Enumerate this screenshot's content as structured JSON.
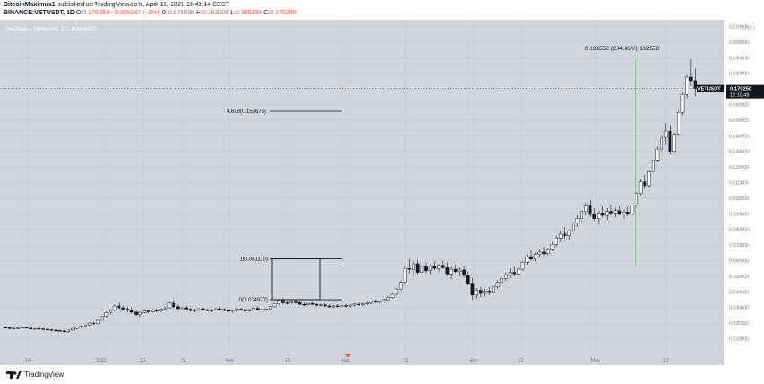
{
  "header": {
    "author": "BitcoinMaximus1",
    "published_text": "published on TradingView.com, April 16, 2021 13:49:14 CEST",
    "symbol": "BINANCE:VETUSDT, 1D",
    "ohlc": [
      {
        "label": "O:",
        "value": "0.170334"
      },
      {
        "label": "",
        "value": "−0.005267 (−3%)"
      },
      {
        "label": "O:",
        "value": "0.175586"
      },
      {
        "label": "H:",
        "value": "0.183000"
      },
      {
        "label": "L:",
        "value": "0.165334"
      },
      {
        "label": "C:",
        "value": "0.170250"
      }
    ]
  },
  "footer": {
    "brand": "TradingView"
  },
  "colors": {
    "background": "#d1d4dc",
    "candle_up": "#ffffff",
    "candle_down": "#131722",
    "projection": "#66bb6a",
    "price_tag": "#131722"
  },
  "chart_data": {
    "type": "candlestick",
    "title": "VeChain / TetherUS, 1D, BINANCE",
    "x_ticks": [
      "14",
      "2021",
      "11",
      "21",
      "Feb",
      "15",
      "Mar",
      "15",
      "Apr",
      "12",
      "May",
      "17"
    ],
    "y_ticks": [
      "0.210000",
      "0.200000",
      "0.190000",
      "0.180000",
      "0.170000",
      "0.160000",
      "0.150000",
      "0.140000",
      "0.130000",
      "0.120000",
      "0.110000",
      "0.100000",
      "0.090000",
      "0.080000",
      "0.070000",
      "0.060000",
      "0.050000",
      "0.040000",
      "0.030000",
      "0.020000",
      "0.010000"
    ],
    "y_unit": "USDT",
    "ylim": [
      0.0,
      0.21
    ],
    "price_label": {
      "symbol": "VETUSDT",
      "price": "0.170250",
      "countdown": "12:10:48",
      "value": 0.17025
    },
    "annotations": [
      {
        "text": "4.618(0.155678)",
        "value": 0.155678
      },
      {
        "text": "1(0.061110)",
        "value": 0.06111
      },
      {
        "text": "0(0.034977)",
        "value": 0.034977
      }
    ],
    "projection": {
      "text": "0.132558 (234.86%) 132558",
      "from": 0.0565,
      "to": 0.1891
    },
    "candles_note": "daily candles approx. Dec 7 2020 to Apr 16 2021",
    "candles": [
      [
        0.0172,
        0.0177,
        0.0163,
        0.017
      ],
      [
        0.017,
        0.0174,
        0.016,
        0.0164
      ],
      [
        0.0164,
        0.0169,
        0.0158,
        0.0166
      ],
      [
        0.0166,
        0.0172,
        0.0162,
        0.0169
      ],
      [
        0.0169,
        0.0176,
        0.0165,
        0.0172
      ],
      [
        0.0172,
        0.0178,
        0.0166,
        0.0168
      ],
      [
        0.0168,
        0.0171,
        0.0159,
        0.0162
      ],
      [
        0.0162,
        0.0167,
        0.0157,
        0.0165
      ],
      [
        0.0165,
        0.017,
        0.016,
        0.0163
      ],
      [
        0.0163,
        0.0168,
        0.0157,
        0.016
      ],
      [
        0.016,
        0.0165,
        0.0154,
        0.0158
      ],
      [
        0.0158,
        0.0162,
        0.015,
        0.0154
      ],
      [
        0.0154,
        0.016,
        0.0148,
        0.0152
      ],
      [
        0.0152,
        0.0158,
        0.0146,
        0.0149
      ],
      [
        0.0149,
        0.0156,
        0.0141,
        0.0146
      ],
      [
        0.0146,
        0.0158,
        0.014,
        0.0155
      ],
      [
        0.0155,
        0.0168,
        0.0152,
        0.0165
      ],
      [
        0.0165,
        0.0178,
        0.016,
        0.0175
      ],
      [
        0.0175,
        0.0186,
        0.0168,
        0.018
      ],
      [
        0.018,
        0.0192,
        0.0175,
        0.0188
      ],
      [
        0.0188,
        0.0205,
        0.0182,
        0.02
      ],
      [
        0.02,
        0.021,
        0.019,
        0.0196
      ],
      [
        0.0196,
        0.0225,
        0.0192,
        0.0218
      ],
      [
        0.0218,
        0.025,
        0.0212,
        0.0245
      ],
      [
        0.0245,
        0.0275,
        0.0236,
        0.0268
      ],
      [
        0.0268,
        0.029,
        0.0255,
        0.0282
      ],
      [
        0.0282,
        0.0318,
        0.0276,
        0.031
      ],
      [
        0.031,
        0.033,
        0.029,
        0.0298
      ],
      [
        0.0298,
        0.0312,
        0.028,
        0.029
      ],
      [
        0.029,
        0.0305,
        0.027,
        0.0285
      ],
      [
        0.0285,
        0.03,
        0.026,
        0.027
      ],
      [
        0.027,
        0.028,
        0.0245,
        0.0255
      ],
      [
        0.0255,
        0.0275,
        0.024,
        0.0268
      ],
      [
        0.0268,
        0.0285,
        0.0262,
        0.0278
      ],
      [
        0.0278,
        0.0288,
        0.0265,
        0.0272
      ],
      [
        0.0272,
        0.029,
        0.0268,
        0.0284
      ],
      [
        0.0284,
        0.0292,
        0.027,
        0.0276
      ],
      [
        0.0276,
        0.0295,
        0.0272,
        0.029
      ],
      [
        0.029,
        0.0305,
        0.0282,
        0.0298
      ],
      [
        0.0298,
        0.0335,
        0.0292,
        0.0328
      ],
      [
        0.0328,
        0.0345,
        0.0296,
        0.0305
      ],
      [
        0.0305,
        0.0318,
        0.0285,
        0.0292
      ],
      [
        0.0292,
        0.0305,
        0.028,
        0.0298
      ],
      [
        0.0298,
        0.031,
        0.0285,
        0.029
      ],
      [
        0.029,
        0.0298,
        0.0272,
        0.028
      ],
      [
        0.028,
        0.0292,
        0.027,
        0.0285
      ],
      [
        0.0285,
        0.0298,
        0.0278,
        0.0292
      ],
      [
        0.0292,
        0.03,
        0.028,
        0.0286
      ],
      [
        0.0286,
        0.0294,
        0.0275,
        0.028
      ],
      [
        0.028,
        0.029,
        0.027,
        0.0284
      ],
      [
        0.0284,
        0.0296,
        0.0278,
        0.0292
      ],
      [
        0.0292,
        0.0302,
        0.0282,
        0.0288
      ],
      [
        0.0288,
        0.0295,
        0.0276,
        0.0281
      ],
      [
        0.0281,
        0.0289,
        0.027,
        0.0276
      ],
      [
        0.0276,
        0.0286,
        0.0266,
        0.0282
      ],
      [
        0.0282,
        0.0294,
        0.0276,
        0.029
      ],
      [
        0.029,
        0.0298,
        0.028,
        0.0284
      ],
      [
        0.0284,
        0.0292,
        0.0274,
        0.0278
      ],
      [
        0.0278,
        0.029,
        0.0272,
        0.0286
      ],
      [
        0.0286,
        0.0298,
        0.028,
        0.0295
      ],
      [
        0.0295,
        0.0308,
        0.0285,
        0.0288
      ],
      [
        0.0288,
        0.0296,
        0.0278,
        0.0283
      ],
      [
        0.0283,
        0.0292,
        0.0275,
        0.0289
      ],
      [
        0.0289,
        0.031,
        0.0286,
        0.0305
      ],
      [
        0.0305,
        0.033,
        0.03,
        0.0325
      ],
      [
        0.0325,
        0.0352,
        0.0318,
        0.0345
      ],
      [
        0.0345,
        0.0358,
        0.032,
        0.033
      ],
      [
        0.033,
        0.034,
        0.0318,
        0.0328
      ],
      [
        0.0328,
        0.034,
        0.032,
        0.0336
      ],
      [
        0.0336,
        0.0348,
        0.0324,
        0.0332
      ],
      [
        0.0332,
        0.0342,
        0.0316,
        0.032
      ],
      [
        0.032,
        0.033,
        0.031,
        0.0318
      ],
      [
        0.0318,
        0.033,
        0.0312,
        0.0326
      ],
      [
        0.0326,
        0.0334,
        0.0315,
        0.032
      ],
      [
        0.032,
        0.0328,
        0.0308,
        0.0314
      ],
      [
        0.0314,
        0.0324,
        0.0306,
        0.0318
      ],
      [
        0.0318,
        0.0326,
        0.0304,
        0.031
      ],
      [
        0.031,
        0.0318,
        0.0298,
        0.0304
      ],
      [
        0.0304,
        0.0314,
        0.0296,
        0.031
      ],
      [
        0.031,
        0.032,
        0.03,
        0.0306
      ],
      [
        0.0306,
        0.0316,
        0.0296,
        0.0312
      ],
      [
        0.0312,
        0.0322,
        0.0302,
        0.0308
      ],
      [
        0.0308,
        0.0318,
        0.03,
        0.0315
      ],
      [
        0.0315,
        0.0326,
        0.0306,
        0.0322
      ],
      [
        0.0322,
        0.033,
        0.031,
        0.0318
      ],
      [
        0.0318,
        0.0328,
        0.0308,
        0.0324
      ],
      [
        0.0324,
        0.0334,
        0.0316,
        0.033
      ],
      [
        0.033,
        0.0345,
        0.0322,
        0.034
      ],
      [
        0.034,
        0.0352,
        0.033,
        0.0335
      ],
      [
        0.0335,
        0.0345,
        0.0326,
        0.0342
      ],
      [
        0.0342,
        0.0356,
        0.0334,
        0.035
      ],
      [
        0.035,
        0.0372,
        0.0345,
        0.0365
      ],
      [
        0.0365,
        0.039,
        0.0358,
        0.0385
      ],
      [
        0.0385,
        0.0425,
        0.0378,
        0.0418
      ],
      [
        0.0418,
        0.047,
        0.041,
        0.0462
      ],
      [
        0.0462,
        0.056,
        0.0455,
        0.055
      ],
      [
        0.055,
        0.0611,
        0.052,
        0.0545
      ],
      [
        0.0545,
        0.06,
        0.05,
        0.058
      ],
      [
        0.058,
        0.0605,
        0.051,
        0.0525
      ],
      [
        0.0525,
        0.057,
        0.0505,
        0.056
      ],
      [
        0.056,
        0.059,
        0.052,
        0.0535
      ],
      [
        0.0535,
        0.0575,
        0.0515,
        0.0565
      ],
      [
        0.0565,
        0.0595,
        0.054,
        0.055
      ],
      [
        0.055,
        0.058,
        0.0525,
        0.057
      ],
      [
        0.057,
        0.06,
        0.0545,
        0.0555
      ],
      [
        0.0555,
        0.059,
        0.05,
        0.0515
      ],
      [
        0.0515,
        0.056,
        0.048,
        0.0545
      ],
      [
        0.0545,
        0.0575,
        0.052,
        0.053
      ],
      [
        0.053,
        0.0555,
        0.05,
        0.054
      ],
      [
        0.054,
        0.0565,
        0.049,
        0.0505
      ],
      [
        0.0505,
        0.053,
        0.044,
        0.0455
      ],
      [
        0.0455,
        0.049,
        0.035,
        0.038
      ],
      [
        0.038,
        0.0425,
        0.0355,
        0.041
      ],
      [
        0.041,
        0.043,
        0.0365,
        0.039
      ],
      [
        0.039,
        0.042,
        0.037,
        0.0405
      ],
      [
        0.0405,
        0.043,
        0.038,
        0.0395
      ],
      [
        0.0395,
        0.044,
        0.0385,
        0.0432
      ],
      [
        0.0432,
        0.0475,
        0.042,
        0.046
      ],
      [
        0.046,
        0.05,
        0.0445,
        0.0485
      ],
      [
        0.0485,
        0.0525,
        0.047,
        0.051
      ],
      [
        0.051,
        0.055,
        0.049,
        0.0525
      ],
      [
        0.0525,
        0.056,
        0.05,
        0.0515
      ],
      [
        0.0515,
        0.0555,
        0.0505,
        0.0545
      ],
      [
        0.0545,
        0.06,
        0.0535,
        0.059
      ],
      [
        0.059,
        0.064,
        0.0575,
        0.0625
      ],
      [
        0.0625,
        0.0665,
        0.06,
        0.061
      ],
      [
        0.061,
        0.065,
        0.0595,
        0.064
      ],
      [
        0.064,
        0.0675,
        0.062,
        0.0655
      ],
      [
        0.0655,
        0.069,
        0.063,
        0.0645
      ],
      [
        0.0645,
        0.068,
        0.0635,
        0.067
      ],
      [
        0.067,
        0.072,
        0.066,
        0.0705
      ],
      [
        0.0705,
        0.076,
        0.069,
        0.0745
      ],
      [
        0.0745,
        0.079,
        0.072,
        0.077
      ],
      [
        0.077,
        0.0815,
        0.074,
        0.076
      ],
      [
        0.076,
        0.08,
        0.0735,
        0.079
      ],
      [
        0.079,
        0.085,
        0.078,
        0.084
      ],
      [
        0.084,
        0.089,
        0.0815,
        0.087
      ],
      [
        0.087,
        0.0925,
        0.085,
        0.0915
      ],
      [
        0.0915,
        0.097,
        0.089,
        0.095
      ],
      [
        0.095,
        0.099,
        0.088,
        0.0895
      ],
      [
        0.0895,
        0.0935,
        0.0855,
        0.087
      ],
      [
        0.087,
        0.092,
        0.083,
        0.0905
      ],
      [
        0.0905,
        0.095,
        0.0875,
        0.089
      ],
      [
        0.089,
        0.0935,
        0.086,
        0.0915
      ],
      [
        0.0915,
        0.096,
        0.089,
        0.0905
      ],
      [
        0.0905,
        0.094,
        0.0875,
        0.092
      ],
      [
        0.092,
        0.095,
        0.089,
        0.0898
      ],
      [
        0.0898,
        0.093,
        0.087,
        0.0912
      ],
      [
        0.0912,
        0.0945,
        0.0885,
        0.09
      ],
      [
        0.09,
        0.096,
        0.089,
        0.0955
      ],
      [
        0.0955,
        0.104,
        0.0945,
        0.103
      ],
      [
        0.103,
        0.112,
        0.1015,
        0.1105
      ],
      [
        0.1105,
        0.115,
        0.106,
        0.108
      ],
      [
        0.108,
        0.118,
        0.107,
        0.117
      ],
      [
        0.117,
        0.126,
        0.115,
        0.1245
      ],
      [
        0.1245,
        0.133,
        0.123,
        0.1315
      ],
      [
        0.1315,
        0.141,
        0.129,
        0.139
      ],
      [
        0.139,
        0.148,
        0.134,
        0.143
      ],
      [
        0.143,
        0.147,
        0.128,
        0.13
      ],
      [
        0.13,
        0.142,
        0.129,
        0.141
      ],
      [
        0.141,
        0.156,
        0.14,
        0.155
      ],
      [
        0.155,
        0.168,
        0.153,
        0.1665
      ],
      [
        0.1665,
        0.179,
        0.164,
        0.1775
      ],
      [
        0.1775,
        0.1891,
        0.172,
        0.1753
      ],
      [
        0.1753,
        0.183,
        0.1653,
        0.1703
      ]
    ]
  }
}
